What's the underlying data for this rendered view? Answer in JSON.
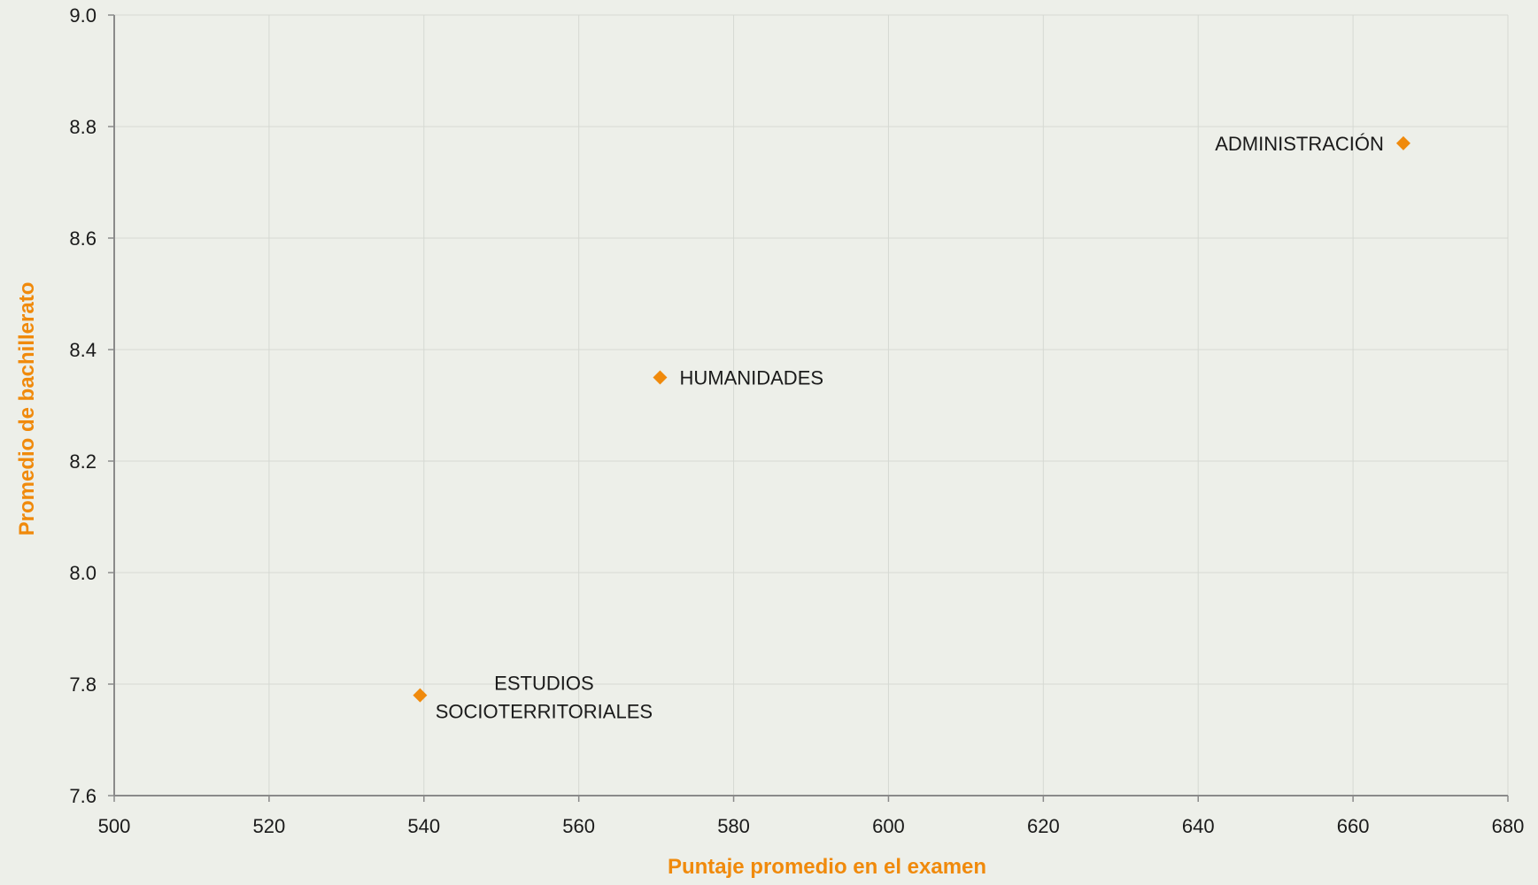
{
  "chart_data": {
    "type": "scatter",
    "title": "",
    "xlabel": "Puntaje promedio en el examen",
    "ylabel": "Promedio de bachillerato",
    "xlim": [
      500,
      680
    ],
    "ylim": [
      7.6,
      9.0
    ],
    "x_ticks": [
      500,
      520,
      540,
      560,
      580,
      600,
      620,
      640,
      660,
      680
    ],
    "y_ticks": [
      7.6,
      7.8,
      8.0,
      8.2,
      8.4,
      8.6,
      8.8,
      9.0
    ],
    "grid": true,
    "legend": "none",
    "colors": {
      "marker": "#f08a0c",
      "axis_title": "#f08a0c",
      "grid": "#d6d9d3",
      "axis": "#8a8a8a",
      "background": "#edefe9"
    },
    "points": [
      {
        "label_lines": [
          "ADMINISTRACIÓN"
        ],
        "x": 666.5,
        "y": 8.77,
        "label_pos": "left"
      },
      {
        "label_lines": [
          "HUMANIDADES"
        ],
        "x": 570.5,
        "y": 8.35,
        "label_pos": "right"
      },
      {
        "label_lines": [
          "ESTUDIOS",
          "SOCIOTERRITORIALES"
        ],
        "x": 539.5,
        "y": 7.78,
        "label_pos": "right-center"
      }
    ]
  }
}
